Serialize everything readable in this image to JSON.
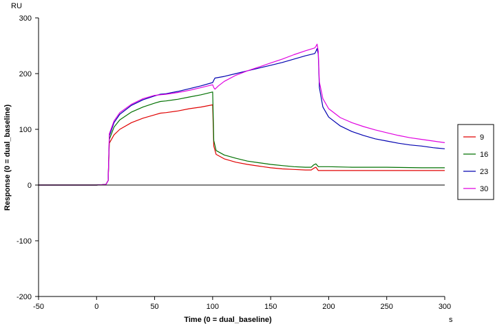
{
  "chart_data": {
    "type": "line",
    "title": "",
    "xlabel": "Time (0 = dual_baseline)",
    "ylabel": "Response (0 = dual_baseline)",
    "x_unit": "s",
    "y_unit": "RU",
    "xlim": [
      -50,
      300
    ],
    "ylim": [
      -200,
      300
    ],
    "x_ticks": [
      -50,
      0,
      50,
      100,
      150,
      200,
      250,
      300
    ],
    "y_ticks": [
      -200,
      -100,
      0,
      100,
      200,
      300
    ],
    "grid": false,
    "legend_position": "right",
    "series": [
      {
        "name": "9",
        "color": "#e00000",
        "points": [
          [
            -50,
            0
          ],
          [
            -30,
            0
          ],
          [
            -10,
            0
          ],
          [
            0,
            0
          ],
          [
            8,
            1
          ],
          [
            10,
            8
          ],
          [
            11,
            75
          ],
          [
            15,
            90
          ],
          [
            20,
            100
          ],
          [
            30,
            112
          ],
          [
            40,
            120
          ],
          [
            50,
            126
          ],
          [
            55,
            129
          ],
          [
            60,
            130
          ],
          [
            70,
            133
          ],
          [
            80,
            137
          ],
          [
            90,
            140
          ],
          [
            100,
            144
          ],
          [
            101,
            70
          ],
          [
            103,
            55
          ],
          [
            110,
            47
          ],
          [
            120,
            41
          ],
          [
            130,
            37
          ],
          [
            140,
            34
          ],
          [
            150,
            31
          ],
          [
            160,
            29
          ],
          [
            170,
            28
          ],
          [
            180,
            27
          ],
          [
            185,
            27
          ],
          [
            187,
            30
          ],
          [
            189,
            32
          ],
          [
            191,
            26
          ],
          [
            200,
            26
          ],
          [
            220,
            26
          ],
          [
            250,
            26
          ],
          [
            280,
            26
          ],
          [
            300,
            26
          ]
        ]
      },
      {
        "name": "16",
        "color": "#007000",
        "points": [
          [
            -50,
            0
          ],
          [
            -30,
            0
          ],
          [
            -10,
            0
          ],
          [
            0,
            0
          ],
          [
            8,
            1
          ],
          [
            10,
            8
          ],
          [
            11,
            82
          ],
          [
            15,
            104
          ],
          [
            20,
            117
          ],
          [
            30,
            131
          ],
          [
            40,
            140
          ],
          [
            50,
            147
          ],
          [
            55,
            150
          ],
          [
            60,
            151
          ],
          [
            70,
            154
          ],
          [
            80,
            158
          ],
          [
            90,
            162
          ],
          [
            100,
            167
          ],
          [
            101,
            80
          ],
          [
            103,
            62
          ],
          [
            110,
            54
          ],
          [
            120,
            48
          ],
          [
            130,
            43
          ],
          [
            140,
            40
          ],
          [
            150,
            37
          ],
          [
            160,
            35
          ],
          [
            170,
            33
          ],
          [
            180,
            32
          ],
          [
            185,
            32
          ],
          [
            187,
            36
          ],
          [
            189,
            38
          ],
          [
            191,
            33
          ],
          [
            200,
            33
          ],
          [
            220,
            32
          ],
          [
            250,
            32
          ],
          [
            280,
            31
          ],
          [
            300,
            31
          ]
        ]
      },
      {
        "name": "23",
        "color": "#0000b0",
        "points": [
          [
            -50,
            0
          ],
          [
            -30,
            0
          ],
          [
            -10,
            0
          ],
          [
            0,
            0
          ],
          [
            8,
            1
          ],
          [
            10,
            8
          ],
          [
            11,
            88
          ],
          [
            15,
            112
          ],
          [
            20,
            127
          ],
          [
            30,
            143
          ],
          [
            40,
            153
          ],
          [
            50,
            160
          ],
          [
            55,
            163
          ],
          [
            60,
            164
          ],
          [
            70,
            168
          ],
          [
            80,
            173
          ],
          [
            90,
            178
          ],
          [
            100,
            184
          ],
          [
            101,
            188
          ],
          [
            102,
            192
          ],
          [
            110,
            195
          ],
          [
            120,
            200
          ],
          [
            130,
            205
          ],
          [
            140,
            210
          ],
          [
            150,
            215
          ],
          [
            160,
            220
          ],
          [
            170,
            226
          ],
          [
            180,
            232
          ],
          [
            188,
            236
          ],
          [
            189,
            240
          ],
          [
            190,
            245
          ],
          [
            191,
            235
          ],
          [
            192,
            175
          ],
          [
            195,
            140
          ],
          [
            200,
            122
          ],
          [
            210,
            106
          ],
          [
            220,
            96
          ],
          [
            230,
            89
          ],
          [
            240,
            83
          ],
          [
            250,
            79
          ],
          [
            260,
            75
          ],
          [
            270,
            72
          ],
          [
            280,
            70
          ],
          [
            290,
            67
          ],
          [
            300,
            65
          ]
        ]
      },
      {
        "name": "30",
        "color": "#e000e0",
        "points": [
          [
            -50,
            0
          ],
          [
            -30,
            0
          ],
          [
            -10,
            0
          ],
          [
            0,
            0
          ],
          [
            8,
            1
          ],
          [
            10,
            8
          ],
          [
            11,
            92
          ],
          [
            15,
            115
          ],
          [
            20,
            130
          ],
          [
            30,
            145
          ],
          [
            40,
            155
          ],
          [
            50,
            161
          ],
          [
            55,
            162
          ],
          [
            60,
            163
          ],
          [
            70,
            166
          ],
          [
            80,
            170
          ],
          [
            90,
            175
          ],
          [
            100,
            180
          ],
          [
            101,
            175
          ],
          [
            102,
            172
          ],
          [
            105,
            178
          ],
          [
            110,
            186
          ],
          [
            120,
            197
          ],
          [
            130,
            205
          ],
          [
            140,
            212
          ],
          [
            150,
            219
          ],
          [
            160,
            226
          ],
          [
            170,
            234
          ],
          [
            180,
            241
          ],
          [
            188,
            246
          ],
          [
            189,
            249
          ],
          [
            190,
            253
          ],
          [
            191,
            240
          ],
          [
            192,
            185
          ],
          [
            195,
            155
          ],
          [
            200,
            137
          ],
          [
            210,
            121
          ],
          [
            220,
            112
          ],
          [
            230,
            105
          ],
          [
            240,
            99
          ],
          [
            250,
            94
          ],
          [
            260,
            89
          ],
          [
            270,
            85
          ],
          [
            280,
            82
          ],
          [
            290,
            79
          ],
          [
            300,
            76
          ]
        ]
      }
    ]
  }
}
